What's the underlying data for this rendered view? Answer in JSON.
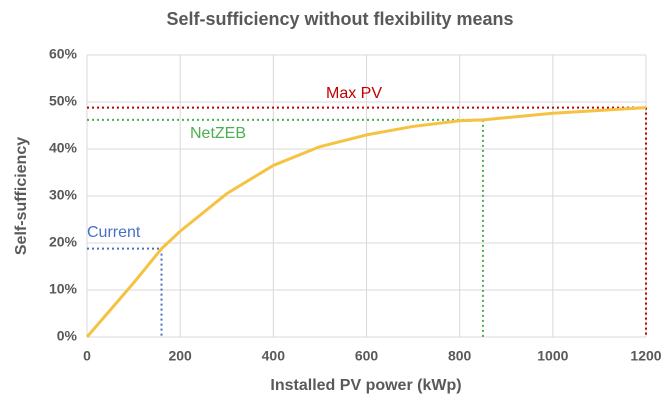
{
  "chart_data": {
    "type": "line",
    "title": "Self-sufficiency without flexibility means",
    "x_label": "Installed PV power (kWp)",
    "y_label": "Self-sufficiency",
    "x": [
      0,
      100,
      160,
      200,
      300,
      400,
      500,
      600,
      700,
      800,
      850,
      1000,
      1200
    ],
    "values": [
      0,
      11.5,
      18.8,
      22.5,
      30.5,
      36.5,
      40.5,
      43,
      44.8,
      46,
      46.2,
      47.6,
      48.8
    ],
    "color": "#f5c242",
    "xlim": [
      0,
      1200
    ],
    "xticks": [
      0,
      200,
      400,
      600,
      800,
      1000,
      1200
    ],
    "ylim": [
      0,
      60
    ],
    "yticks": [
      {
        "value": 0,
        "label": "0%"
      },
      {
        "value": 10,
        "label": "10%"
      },
      {
        "value": 20,
        "label": "20%"
      },
      {
        "value": 30,
        "label": "30%"
      },
      {
        "value": 40,
        "label": "40%"
      },
      {
        "value": 50,
        "label": "50%"
      },
      {
        "value": 60,
        "label": "60%"
      }
    ],
    "grid": true,
    "annotations": [
      {
        "label": "Current",
        "x": 160,
        "y": 18.8,
        "color": "#4472c4"
      },
      {
        "label": "NetZEB",
        "x": 850,
        "y": 46.2,
        "color": "#4caf50"
      },
      {
        "label": "Max PV",
        "x": 1200,
        "y": 48.8,
        "color": "#c00000"
      }
    ]
  }
}
